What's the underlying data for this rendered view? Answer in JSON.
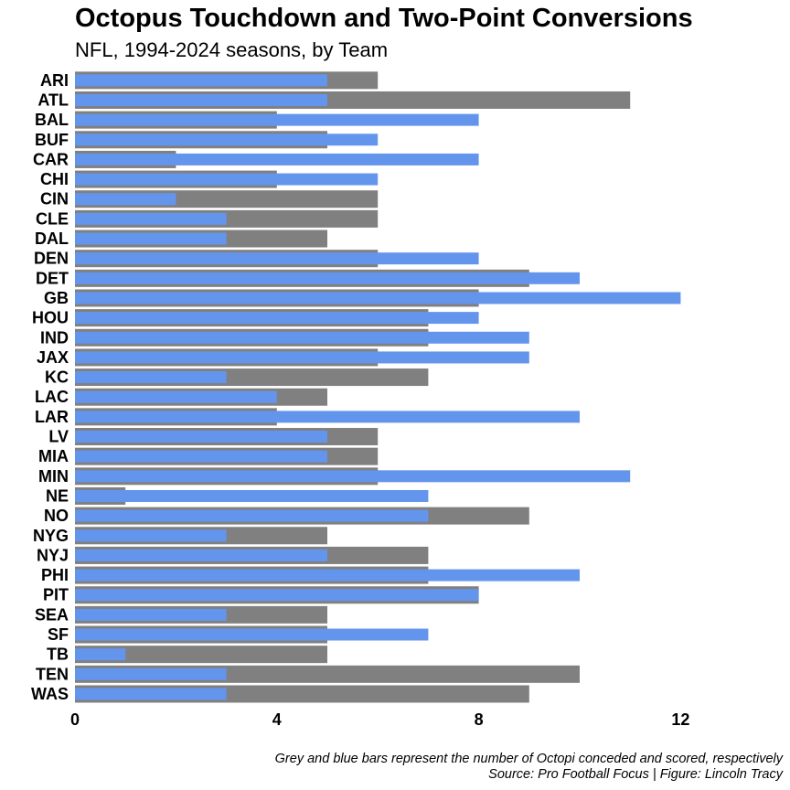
{
  "chart_data": {
    "type": "bar",
    "orientation": "horizontal",
    "title": "Octopus Touchdown and Two-Point Conversions",
    "subtitle": "NFL, 1994-2024 seasons, by Team",
    "caption": [
      "Grey and blue bars represent the number of Octopi conceded and scored, respectively",
      "Source: Pro Football Focus | Figure: Lincoln Tracy"
    ],
    "categories": [
      "ARI",
      "ATL",
      "BAL",
      "BUF",
      "CAR",
      "CHI",
      "CIN",
      "CLE",
      "DAL",
      "DEN",
      "DET",
      "GB",
      "HOU",
      "IND",
      "JAX",
      "KC",
      "LAC",
      "LAR",
      "LV",
      "MIA",
      "MIN",
      "NE",
      "NO",
      "NYG",
      "NYJ",
      "PHI",
      "PIT",
      "SEA",
      "SF",
      "TB",
      "TEN",
      "WAS"
    ],
    "series": [
      {
        "values": [
          6,
          11,
          4,
          5,
          2,
          4,
          6,
          6,
          5,
          6,
          9,
          8,
          7,
          7,
          6,
          7,
          5,
          4,
          6,
          6,
          6,
          1,
          9,
          5,
          7,
          7,
          8,
          5,
          5,
          5,
          10,
          9
        ]
      },
      {
        "values": [
          5,
          5,
          8,
          6,
          8,
          6,
          2,
          3,
          3,
          8,
          10,
          12,
          8,
          9,
          9,
          3,
          4,
          10,
          5,
          5,
          11,
          7,
          7,
          3,
          5,
          10,
          8,
          3,
          7,
          1,
          3,
          3
        ]
      }
    ],
    "xlim": [
      0,
      13.5
    ],
    "xticks": [
      0,
      4,
      8,
      12
    ],
    "grid": false,
    "colors": {
      "conceded": "#808080",
      "scored": "#6495ED"
    }
  }
}
